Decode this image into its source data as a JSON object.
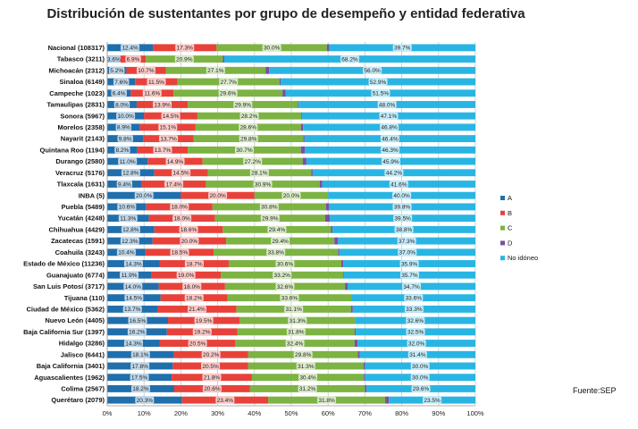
{
  "source": "Fuente:SEP",
  "chart_data": {
    "type": "bar",
    "orientation": "horizontal",
    "stacked": "percent",
    "title": "Distribución de sustentantes por grupo de desempeño y entidad federativa",
    "xlim": [
      0,
      100
    ],
    "x_ticks": [
      "0%",
      "10%",
      "20%",
      "30%",
      "40%",
      "50%",
      "60%",
      "70%",
      "80%",
      "90%",
      "100%"
    ],
    "legend_position": "right",
    "grid": "vertical",
    "series": [
      {
        "name": "A",
        "color": "#1f6fad"
      },
      {
        "name": "B",
        "color": "#e8413a"
      },
      {
        "name": "C",
        "color": "#7cb342"
      },
      {
        "name": "D",
        "color": "#7b4fa0"
      },
      {
        "name": "No idóneo",
        "color": "#29b5e3"
      }
    ],
    "rows": [
      {
        "label": "Nacional (108317)",
        "values": [
          12.4,
          17.3,
          30.0,
          0.6,
          39.7
        ],
        "labels": [
          "12.4%",
          "17.3%",
          "30.0%",
          "",
          "39.7%"
        ]
      },
      {
        "label": "Tabasco (3211)",
        "values": [
          3.6,
          6.9,
          20.9,
          0.4,
          68.2
        ],
        "labels": [
          "3.6%",
          "6.9%",
          "20.9%",
          "",
          "68.2%"
        ]
      },
      {
        "label": "Michoacán (2312)",
        "values": [
          5.2,
          10.7,
          27.1,
          1.0,
          56.0
        ],
        "labels": [
          "5.2%",
          "10.7%",
          "27.1%",
          "",
          "56.0%"
        ]
      },
      {
        "label": "Sinaloa (6149)",
        "values": [
          7.6,
          11.5,
          27.7,
          0.3,
          52.9
        ],
        "labels": [
          "7.6%",
          "11.5%",
          "27.7%",
          "",
          "52.9%"
        ]
      },
      {
        "label": "Campeche (1023)",
        "values": [
          6.4,
          11.6,
          29.6,
          0.9,
          51.5
        ],
        "labels": [
          "6.4%",
          "11.6%",
          "29.6%",
          "",
          "51.5%"
        ]
      },
      {
        "label": "Tamaulipas (2831)",
        "values": [
          8.0,
          13.9,
          29.9,
          0.2,
          48.0
        ],
        "labels": [
          "8.0%",
          "13.9%",
          "29.9%",
          "",
          "48.0%"
        ]
      },
      {
        "label": "Sonora (5967)",
        "values": [
          10.0,
          14.5,
          28.2,
          0.2,
          47.1
        ],
        "labels": [
          "10.0%",
          "14.5%",
          "28.2%",
          "",
          "47.1%"
        ]
      },
      {
        "label": "Morelos (2358)",
        "values": [
          8.9,
          15.1,
          28.6,
          0.6,
          46.8
        ],
        "labels": [
          "8.9%",
          "15.1%",
          "28.6%",
          "",
          "46.8%"
        ]
      },
      {
        "label": "Nayarit (2143)",
        "values": [
          9.8,
          13.7,
          29.8,
          0.3,
          46.4
        ],
        "labels": [
          "9.8%",
          "13.7%",
          "29.8%",
          "",
          "46.4%"
        ]
      },
      {
        "label": "Quintana Roo (1194)",
        "values": [
          8.2,
          13.7,
          30.7,
          1.1,
          46.3
        ],
        "labels": [
          "8.2%",
          "13.7%",
          "30.7%",
          "",
          "46.3%"
        ]
      },
      {
        "label": "Durango (2580)",
        "values": [
          11.0,
          14.9,
          27.2,
          1.0,
          45.9
        ],
        "labels": [
          "11.0%",
          "14.9%",
          "27.2%",
          "",
          "45.9%"
        ]
      },
      {
        "label": "Veracruz (5176)",
        "values": [
          12.8,
          14.5,
          28.1,
          0.4,
          44.2
        ],
        "labels": [
          "12.8%",
          "14.5%",
          "28.1%",
          "",
          "44.2%"
        ]
      },
      {
        "label": "Tlaxcala (1631)",
        "values": [
          9.4,
          17.4,
          30.9,
          0.7,
          41.6
        ],
        "labels": [
          "9.4%",
          "17.4%",
          "30.9%",
          "",
          "41.6%"
        ]
      },
      {
        "label": "INBA (5)",
        "values": [
          20.0,
          20.0,
          20.0,
          0.0,
          40.0
        ],
        "labels": [
          "20.0%",
          "20.0%",
          "20.0%",
          "",
          "40.0%"
        ]
      },
      {
        "label": "Puebla (5489)",
        "values": [
          10.6,
          18.0,
          30.8,
          0.8,
          39.8
        ],
        "labels": [
          "10.6%",
          "18.0%",
          "30.8%",
          "",
          "39.8%"
        ]
      },
      {
        "label": "Yucatán (4248)",
        "values": [
          11.3,
          18.0,
          29.9,
          1.3,
          39.5
        ],
        "labels": [
          "11.3%",
          "18.0%",
          "29.9%",
          "",
          "39.5%"
        ]
      },
      {
        "label": "Chihuahua (4429)",
        "values": [
          12.8,
          18.6,
          29.4,
          0.4,
          38.8
        ],
        "labels": [
          "12.8%",
          "18.6%",
          "29.4%",
          "",
          "38.8%"
        ]
      },
      {
        "label": "Zacatecas (1591)",
        "values": [
          12.3,
          20.0,
          29.4,
          1.0,
          37.3
        ],
        "labels": [
          "12.3%",
          "20.0%",
          "29.4%",
          "",
          "37.3%"
        ]
      },
      {
        "label": "Coahuila (3243)",
        "values": [
          10.4,
          18.5,
          33.8,
          0.3,
          37.0
        ],
        "labels": [
          "10.4%",
          "18.5%",
          "33.8%",
          "",
          "37.0%"
        ]
      },
      {
        "label": "Estado de México (11236)",
        "values": [
          14.3,
          18.7,
          30.6,
          0.5,
          35.9
        ],
        "labels": [
          "14.3%",
          "18.7%",
          "30.6%",
          "",
          "35.9%"
        ]
      },
      {
        "label": "Guanajuato (6774)",
        "values": [
          11.9,
          19.0,
          33.2,
          0.2,
          35.7
        ],
        "labels": [
          "11.9%",
          "19.0%",
          "33.2%",
          "",
          "35.7%"
        ]
      },
      {
        "label": "San Luis Potosí (3717)",
        "values": [
          14.0,
          18.0,
          32.6,
          0.7,
          34.7
        ],
        "labels": [
          "14.0%",
          "18.0%",
          "32.6%",
          "",
          "34.7%"
        ]
      },
      {
        "label": "Tijuana (110)",
        "values": [
          14.5,
          18.2,
          33.6,
          0.1,
          33.6
        ],
        "labels": [
          "14.5%",
          "18.2%",
          "33.6%",
          "",
          "33.6%"
        ]
      },
      {
        "label": "Ciudad de México (5362)",
        "values": [
          13.7,
          21.4,
          31.1,
          0.5,
          33.3
        ],
        "labels": [
          "13.7%",
          "21.4%",
          "31.1%",
          "",
          "33.3%"
        ]
      },
      {
        "label": "Nuevo León (4405)",
        "values": [
          16.5,
          19.5,
          31.3,
          0.1,
          32.6
        ],
        "labels": [
          "16.5%",
          "19.5%",
          "31.3%",
          "",
          "32.6%"
        ]
      },
      {
        "label": "Baja California Sur (1397)",
        "values": [
          16.2,
          19.2,
          31.8,
          0.3,
          32.5
        ],
        "labels": [
          "16.2%",
          "19.2%",
          "31.8%",
          "",
          "32.5%"
        ]
      },
      {
        "label": "Hidalgo (3286)",
        "values": [
          14.3,
          20.5,
          32.4,
          0.8,
          32.0
        ],
        "labels": [
          "14.3%",
          "20.5%",
          "32.4%",
          "",
          "32.0%"
        ]
      },
      {
        "label": "Jalisco (6441)",
        "values": [
          18.1,
          20.2,
          29.8,
          0.5,
          31.4
        ],
        "labels": [
          "18.1%",
          "20.2%",
          "29.8%",
          "",
          "31.4%"
        ]
      },
      {
        "label": "Baja California (3401)",
        "values": [
          17.8,
          20.5,
          31.3,
          0.4,
          30.0
        ],
        "labels": [
          "17.8%",
          "20.5%",
          "31.3%",
          "",
          "30.0%"
        ]
      },
      {
        "label": "Aguascalientes (1962)",
        "values": [
          17.5,
          21.8,
          30.4,
          0.3,
          30.0
        ],
        "labels": [
          "17.5%",
          "21.8%",
          "30.4%",
          "",
          "30.0%"
        ]
      },
      {
        "label": "Colima (2567)",
        "values": [
          18.2,
          20.6,
          31.2,
          0.4,
          29.6
        ],
        "labels": [
          "18.2%",
          "20.6%",
          "31.2%",
          "",
          "29.6%"
        ]
      },
      {
        "label": "Querétaro (2079)",
        "values": [
          20.3,
          23.4,
          31.8,
          1.0,
          23.5
        ],
        "labels": [
          "20.3%",
          "23.4%",
          "31.8%",
          "",
          "23.5%"
        ]
      }
    ]
  }
}
